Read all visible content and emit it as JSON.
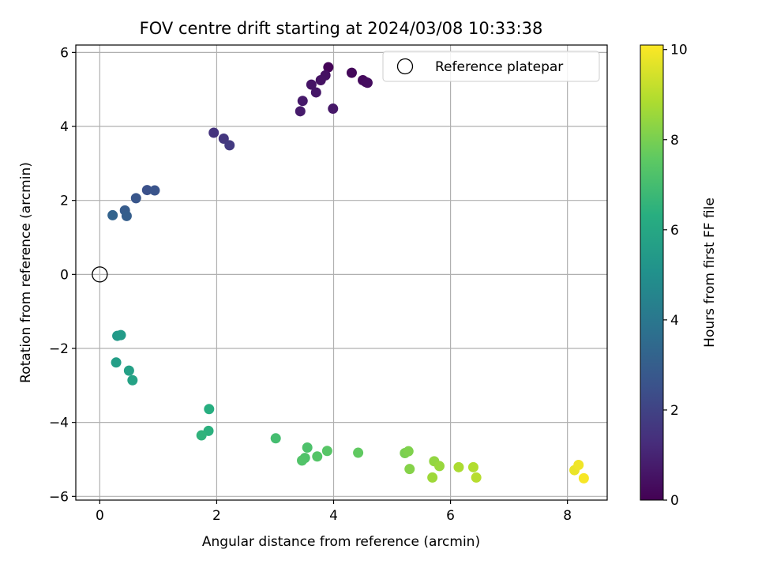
{
  "chart_data": {
    "type": "scatter",
    "title": "FOV centre drift starting at 2024/03/08 10:33:38",
    "xlabel": "Angular distance from reference (arcmin)",
    "ylabel": "Rotation from reference (arcmin)",
    "xlim": [
      -0.41,
      8.68
    ],
    "ylim": [
      -6.1,
      6.2
    ],
    "x_ticks": [
      0,
      2,
      4,
      6,
      8
    ],
    "x_tick_labels": [
      "0",
      "2",
      "4",
      "6",
      "8"
    ],
    "y_ticks": [
      -6,
      -4,
      -2,
      0,
      2,
      4,
      6
    ],
    "y_tick_labels": [
      "−6",
      "−4",
      "−2",
      "0",
      "2",
      "4",
      "6"
    ],
    "grid": true,
    "legend": {
      "placement": "top-right",
      "entries": [
        {
          "label": "Reference platepar",
          "marker": "open-circle",
          "x": 0,
          "y": 0
        }
      ]
    },
    "colorbar": {
      "label": "Hours from first FF file",
      "range": [
        0,
        10.1
      ],
      "ticks": [
        0,
        2,
        4,
        6,
        8,
        10
      ],
      "tick_labels": [
        "0",
        "2",
        "4",
        "6",
        "8",
        "10"
      ],
      "colormap": "viridis"
    },
    "points": [
      {
        "x": 3.91,
        "y": 5.6,
        "c": 0.1
      },
      {
        "x": 4.31,
        "y": 5.45,
        "c": 0.2
      },
      {
        "x": 4.5,
        "y": 5.25,
        "c": 0.25
      },
      {
        "x": 4.55,
        "y": 5.2,
        "c": 0.3
      },
      {
        "x": 4.58,
        "y": 5.18,
        "c": 0.35
      },
      {
        "x": 3.86,
        "y": 5.38,
        "c": 0.45
      },
      {
        "x": 3.78,
        "y": 5.25,
        "c": 0.5
      },
      {
        "x": 3.62,
        "y": 5.13,
        "c": 0.55
      },
      {
        "x": 3.7,
        "y": 4.92,
        "c": 0.6
      },
      {
        "x": 3.99,
        "y": 4.48,
        "c": 0.65
      },
      {
        "x": 3.47,
        "y": 4.69,
        "c": 0.7
      },
      {
        "x": 3.43,
        "y": 4.41,
        "c": 0.75
      },
      {
        "x": 1.95,
        "y": 3.83,
        "c": 1.5
      },
      {
        "x": 2.12,
        "y": 3.67,
        "c": 1.6
      },
      {
        "x": 2.22,
        "y": 3.49,
        "c": 1.7
      },
      {
        "x": 0.81,
        "y": 2.28,
        "c": 2.5
      },
      {
        "x": 0.94,
        "y": 2.27,
        "c": 2.6
      },
      {
        "x": 0.62,
        "y": 2.06,
        "c": 2.7
      },
      {
        "x": 0.43,
        "y": 1.73,
        "c": 2.9
      },
      {
        "x": 0.46,
        "y": 1.58,
        "c": 3.0
      },
      {
        "x": 0.22,
        "y": 1.6,
        "c": 3.2
      },
      {
        "x": 0.3,
        "y": -1.66,
        "c": 5.4
      },
      {
        "x": 0.36,
        "y": -1.64,
        "c": 5.5
      },
      {
        "x": 0.28,
        "y": -2.38,
        "c": 5.6
      },
      {
        "x": 0.5,
        "y": -2.6,
        "c": 5.7
      },
      {
        "x": 0.56,
        "y": -2.86,
        "c": 5.8
      },
      {
        "x": 1.87,
        "y": -3.64,
        "c": 6.3
      },
      {
        "x": 1.86,
        "y": -4.23,
        "c": 6.4
      },
      {
        "x": 1.74,
        "y": -4.35,
        "c": 6.5
      },
      {
        "x": 3.01,
        "y": -4.43,
        "c": 7.0
      },
      {
        "x": 3.55,
        "y": -4.68,
        "c": 7.2
      },
      {
        "x": 3.51,
        "y": -4.96,
        "c": 7.25
      },
      {
        "x": 3.46,
        "y": -5.03,
        "c": 7.3
      },
      {
        "x": 3.72,
        "y": -4.92,
        "c": 7.35
      },
      {
        "x": 3.89,
        "y": -4.77,
        "c": 7.4
      },
      {
        "x": 4.42,
        "y": -4.82,
        "c": 7.6
      },
      {
        "x": 5.22,
        "y": -4.83,
        "c": 8.0
      },
      {
        "x": 5.28,
        "y": -4.78,
        "c": 8.1
      },
      {
        "x": 5.3,
        "y": -5.26,
        "c": 8.2
      },
      {
        "x": 5.72,
        "y": -5.05,
        "c": 8.4
      },
      {
        "x": 5.81,
        "y": -5.18,
        "c": 8.5
      },
      {
        "x": 5.69,
        "y": -5.49,
        "c": 8.6
      },
      {
        "x": 6.14,
        "y": -5.21,
        "c": 8.8
      },
      {
        "x": 6.39,
        "y": -5.21,
        "c": 8.9
      },
      {
        "x": 6.44,
        "y": -5.49,
        "c": 9.0
      },
      {
        "x": 8.12,
        "y": -5.29,
        "c": 9.8
      },
      {
        "x": 8.19,
        "y": -5.15,
        "c": 9.9
      },
      {
        "x": 8.28,
        "y": -5.51,
        "c": 10.0
      }
    ]
  }
}
